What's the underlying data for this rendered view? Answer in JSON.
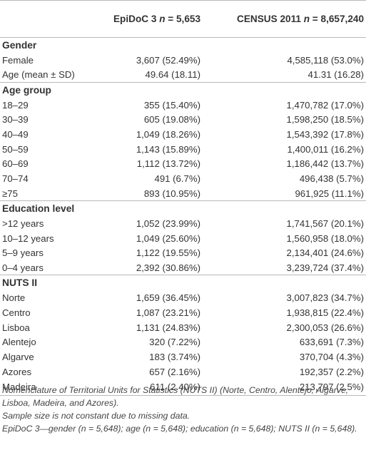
{
  "header": {
    "col0": "",
    "col1_label": "EpiDoC 3",
    "col1_n_italic": "n",
    "col1_n_value": " = 5,653",
    "col2_label": "CENSUS 2011",
    "col2_n_italic": "n",
    "col2_n_value": " = 8,657,240"
  },
  "sections": {
    "gender": {
      "title": "Gender",
      "rows": [
        {
          "label": "Female",
          "epidoc": "3,607 (52.49%)",
          "census": "4,585,118 (53.0%)"
        },
        {
          "label": "Age (mean ± SD)",
          "epidoc": "49.64 (18.11)",
          "census": "41.31 (16.28)"
        }
      ]
    },
    "age": {
      "title": "Age group",
      "rows": [
        {
          "label": "18–29",
          "epidoc": "355 (15.40%)",
          "census": "1,470,782 (17.0%)"
        },
        {
          "label": "30–39",
          "epidoc": "605 (19.08%)",
          "census": "1,598,250 (18.5%)"
        },
        {
          "label": "40–49",
          "epidoc": "1,049 (18.26%)",
          "census": "1,543,392 (17.8%)"
        },
        {
          "label": "50–59",
          "epidoc": "1,143 (15.89%)",
          "census": "1,400,011 (16.2%)"
        },
        {
          "label": "60–69",
          "epidoc": "1,112 (13.72%)",
          "census": "1,186,442 (13.7%)"
        },
        {
          "label": "70–74",
          "epidoc": "491 (6.7%)",
          "census": "496,438 (5.7%)"
        },
        {
          "label": "≥75",
          "epidoc": "893 (10.95%)",
          "census": "961,925 (11.1%)"
        }
      ]
    },
    "education": {
      "title": "Education level",
      "rows": [
        {
          "label": ">12 years",
          "epidoc": "1,052 (23.99%)",
          "census": "1,741,567 (20.1%)"
        },
        {
          "label": "10–12 years",
          "epidoc": "1,049 (25.60%)",
          "census": "1,560,958 (18.0%)"
        },
        {
          "label": "5–9 years",
          "epidoc": "1,122 (19.55%)",
          "census": "2,134,401 (24.6%)"
        },
        {
          "label": "0–4 years",
          "epidoc": "2,392 (30.86%)",
          "census": "3,239,724 (37.4%)"
        }
      ]
    },
    "nuts": {
      "title": "NUTS II",
      "rows": [
        {
          "label": "Norte",
          "epidoc": "1,659 (36.45%)",
          "census": "3,007,823 (34.7%)"
        },
        {
          "label": "Centro",
          "epidoc": "1,087 (23.21%)",
          "census": "1,938,815 (22.4%)"
        },
        {
          "label": "Lisboa",
          "epidoc": "1,131 (24.83%)",
          "census": "2,300,053 (26.6%)"
        },
        {
          "label": "Alentejo",
          "epidoc": "320 (7.22%)",
          "census": "633,691 (7.3%)"
        },
        {
          "label": "Algarve",
          "epidoc": "183 (3.74%)",
          "census": "370,704 (4.3%)"
        },
        {
          "label": "Azores",
          "epidoc": "657 (2.16%)",
          "census": "192,357 (2.2%)"
        },
        {
          "label": "Madeira",
          "epidoc": "611 (2.40%)",
          "census": "213,797 (2.5%)"
        }
      ]
    }
  },
  "notes": {
    "line1": "Nomenclature of Territorial Units for Statistics (NUTS II) (Norte, Centro, Alentejo, Algarve, Lisboa, Madeira, and Azores).",
    "line2": "Sample size is not constant due to missing data.",
    "line3": "EpiDoC 3—gender (n = 5,648); age (n = 5,648); education (n = 5,648); NUTS II (n = 5,648)."
  }
}
